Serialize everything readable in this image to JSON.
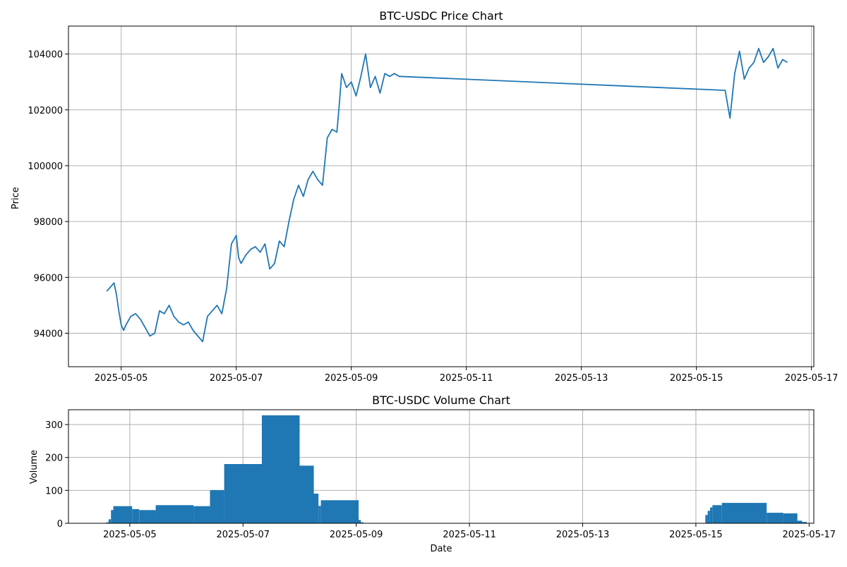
{
  "chart_data": [
    {
      "type": "line",
      "title": "BTC-USDC Price Chart",
      "xlabel": "",
      "ylabel": "Price",
      "grid": true,
      "color": "#1f77b4",
      "xlim": [
        "2025-05-04T02:00",
        "2025-05-17T01:00"
      ],
      "ylim": [
        92800,
        105000
      ],
      "x_ticks": [
        "2025-05-05",
        "2025-05-07",
        "2025-05-09",
        "2025-05-11",
        "2025-05-13",
        "2025-05-15",
        "2025-05-17"
      ],
      "y_ticks": [
        94000,
        96000,
        98000,
        100000,
        102000,
        104000
      ],
      "y_tick_labels": [
        "94000",
        "96000",
        "98000",
        "100000",
        "102000",
        "104000"
      ],
      "series": [
        {
          "x": [
            "2025-05-04T18:00",
            "2025-05-04T19:00",
            "2025-05-04T20:00",
            "2025-05-04T21:00",
            "2025-05-04T22:00",
            "2025-05-04T23:00",
            "2025-05-05T00:00",
            "2025-05-05T01:00",
            "2025-05-05T02:00",
            "2025-05-05T04:00",
            "2025-05-05T06:00",
            "2025-05-05T08:00",
            "2025-05-05T10:00",
            "2025-05-05T12:00",
            "2025-05-05T14:00",
            "2025-05-05T16:00",
            "2025-05-05T18:00",
            "2025-05-05T20:00",
            "2025-05-05T22:00",
            "2025-05-06T00:00",
            "2025-05-06T02:00",
            "2025-05-06T04:00",
            "2025-05-06T06:00",
            "2025-05-06T08:00",
            "2025-05-06T10:00",
            "2025-05-06T12:00",
            "2025-05-06T14:00",
            "2025-05-06T16:00",
            "2025-05-06T18:00",
            "2025-05-06T20:00",
            "2025-05-06T22:00",
            "2025-05-07T00:00",
            "2025-05-07T01:00",
            "2025-05-07T02:00",
            "2025-05-07T04:00",
            "2025-05-07T06:00",
            "2025-05-07T08:00",
            "2025-05-07T10:00",
            "2025-05-07T12:00",
            "2025-05-07T14:00",
            "2025-05-07T16:00",
            "2025-05-07T18:00",
            "2025-05-07T20:00",
            "2025-05-07T22:00",
            "2025-05-08T00:00",
            "2025-05-08T02:00",
            "2025-05-08T04:00",
            "2025-05-08T06:00",
            "2025-05-08T08:00",
            "2025-05-08T10:00",
            "2025-05-08T12:00",
            "2025-05-08T14:00",
            "2025-05-08T16:00",
            "2025-05-08T18:00",
            "2025-05-08T19:00",
            "2025-05-08T20:00",
            "2025-05-08T22:00",
            "2025-05-09T00:00",
            "2025-05-09T02:00",
            "2025-05-09T04:00",
            "2025-05-09T06:00",
            "2025-05-09T08:00",
            "2025-05-09T10:00",
            "2025-05-09T12:00",
            "2025-05-09T14:00",
            "2025-05-09T16:00",
            "2025-05-09T18:00",
            "2025-05-09T20:00",
            "2025-05-15T12:00",
            "2025-05-15T13:00",
            "2025-05-15T14:00",
            "2025-05-15T16:00",
            "2025-05-15T18:00",
            "2025-05-15T20:00",
            "2025-05-15T22:00",
            "2025-05-16T00:00",
            "2025-05-16T02:00",
            "2025-05-16T04:00",
            "2025-05-16T06:00",
            "2025-05-16T08:00",
            "2025-05-16T10:00",
            "2025-05-16T12:00",
            "2025-05-16T14:00"
          ],
          "y": [
            95500,
            95600,
            95700,
            95800,
            95400,
            94800,
            94300,
            94100,
            94300,
            94600,
            94700,
            94500,
            94200,
            93900,
            94000,
            94800,
            94700,
            95000,
            94600,
            94400,
            94300,
            94400,
            94100,
            93900,
            93700,
            94600,
            94800,
            95000,
            94700,
            95600,
            97200,
            97500,
            96700,
            96500,
            96800,
            97000,
            97100,
            96900,
            97200,
            96300,
            96500,
            97300,
            97100,
            98000,
            98800,
            99300,
            98900,
            99500,
            99800,
            99500,
            99300,
            101000,
            101300,
            101200,
            102200,
            103300,
            102800,
            103000,
            102500,
            103200,
            104000,
            102800,
            103200,
            102600,
            103300,
            103200,
            103300,
            103200,
            102700,
            102200,
            101700,
            103300,
            104100,
            103100,
            103500,
            103700,
            104200,
            103700,
            103900,
            104200,
            103500,
            103800,
            103700
          ]
        }
      ]
    },
    {
      "type": "bar",
      "title": "BTC-USDC Volume Chart",
      "xlabel": "Date",
      "ylabel": "Volume",
      "grid": true,
      "color": "#1f77b4",
      "xlim": [
        "2025-05-03T22:00",
        "2025-05-17T02:00"
      ],
      "ylim": [
        0,
        345
      ],
      "x_ticks": [
        "2025-05-05",
        "2025-05-07",
        "2025-05-09",
        "2025-05-11",
        "2025-05-13",
        "2025-05-15",
        "2025-05-17"
      ],
      "y_ticks": [
        0,
        100,
        200,
        300
      ],
      "y_tick_labels": [
        "0",
        "100",
        "200",
        "300"
      ],
      "bars": [
        {
          "start": "2025-05-04T14:00",
          "end": "2025-05-04T15:00",
          "value": 3
        },
        {
          "start": "2025-05-04T15:00",
          "end": "2025-05-04T16:00",
          "value": 12
        },
        {
          "start": "2025-05-04T16:00",
          "end": "2025-05-04T17:00",
          "value": 40
        },
        {
          "start": "2025-05-04T17:00",
          "end": "2025-05-05T01:00",
          "value": 52
        },
        {
          "start": "2025-05-05T01:00",
          "end": "2025-05-05T04:00",
          "value": 43
        },
        {
          "start": "2025-05-05T04:00",
          "end": "2025-05-05T11:00",
          "value": 40
        },
        {
          "start": "2025-05-05T11:00",
          "end": "2025-05-06T03:00",
          "value": 55
        },
        {
          "start": "2025-05-06T03:00",
          "end": "2025-05-06T10:00",
          "value": 52
        },
        {
          "start": "2025-05-06T10:00",
          "end": "2025-05-06T16:00",
          "value": 101
        },
        {
          "start": "2025-05-06T16:00",
          "end": "2025-05-07T08:00",
          "value": 180
        },
        {
          "start": "2025-05-07T08:00",
          "end": "2025-05-08T00:00",
          "value": 328
        },
        {
          "start": "2025-05-08T00:00",
          "end": "2025-05-08T06:00",
          "value": 175
        },
        {
          "start": "2025-05-08T06:00",
          "end": "2025-05-08T08:00",
          "value": 90
        },
        {
          "start": "2025-05-08T08:00",
          "end": "2025-05-08T09:00",
          "value": 53
        },
        {
          "start": "2025-05-08T09:00",
          "end": "2025-05-09T01:00",
          "value": 70
        },
        {
          "start": "2025-05-09T01:00",
          "end": "2025-05-09T02:00",
          "value": 10
        },
        {
          "start": "2025-05-09T02:00",
          "end": "2025-05-09T03:00",
          "value": 3
        },
        {
          "start": "2025-05-15T04:00",
          "end": "2025-05-15T05:00",
          "value": 25
        },
        {
          "start": "2025-05-15T05:00",
          "end": "2025-05-15T06:00",
          "value": 38
        },
        {
          "start": "2025-05-15T06:00",
          "end": "2025-05-15T07:00",
          "value": 48
        },
        {
          "start": "2025-05-15T07:00",
          "end": "2025-05-15T11:00",
          "value": 55
        },
        {
          "start": "2025-05-15T11:00",
          "end": "2025-05-16T06:00",
          "value": 62
        },
        {
          "start": "2025-05-16T06:00",
          "end": "2025-05-16T13:00",
          "value": 32
        },
        {
          "start": "2025-05-16T13:00",
          "end": "2025-05-16T19:00",
          "value": 30
        },
        {
          "start": "2025-05-16T19:00",
          "end": "2025-05-16T21:00",
          "value": 8
        },
        {
          "start": "2025-05-16T21:00",
          "end": "2025-05-16T23:00",
          "value": 4
        }
      ]
    }
  ]
}
